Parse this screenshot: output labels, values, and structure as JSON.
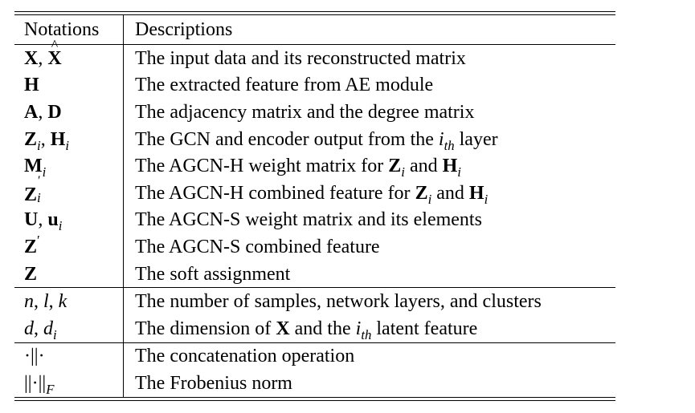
{
  "header": {
    "notations": "Notations",
    "descriptions": "Descriptions"
  },
  "rows": [
    {
      "notation": "X, X̂",
      "description": "The input data and its reconstructed matrix"
    },
    {
      "notation": "H",
      "description": "The extracted feature from AE module"
    },
    {
      "notation": "A, D",
      "description": "The adjacency matrix and the degree matrix"
    },
    {
      "notation": "Zi, Hi",
      "description": "The GCN and encoder output from the ith layer"
    },
    {
      "notation": "Mi",
      "description": "The AGCN-H weight matrix for Zi and Hi"
    },
    {
      "notation": "Z′i",
      "description": "The AGCN-H combined feature for Zi and Hi"
    },
    {
      "notation": "U, ui",
      "description": "The AGCN-S weight matrix and its elements"
    },
    {
      "notation": "Z′",
      "description": "The AGCN-S combined feature"
    },
    {
      "notation": "Z",
      "description": "The soft assignment"
    },
    {
      "notation": "n, l, k",
      "description": "The number of samples, network layers, and clusters"
    },
    {
      "notation": "d, di",
      "description": "The dimension of X and the ith latent feature"
    },
    {
      "notation": "·||·",
      "description": "The concatenation operation"
    },
    {
      "notation": "||·||F",
      "description": "The Frobenius norm"
    }
  ]
}
